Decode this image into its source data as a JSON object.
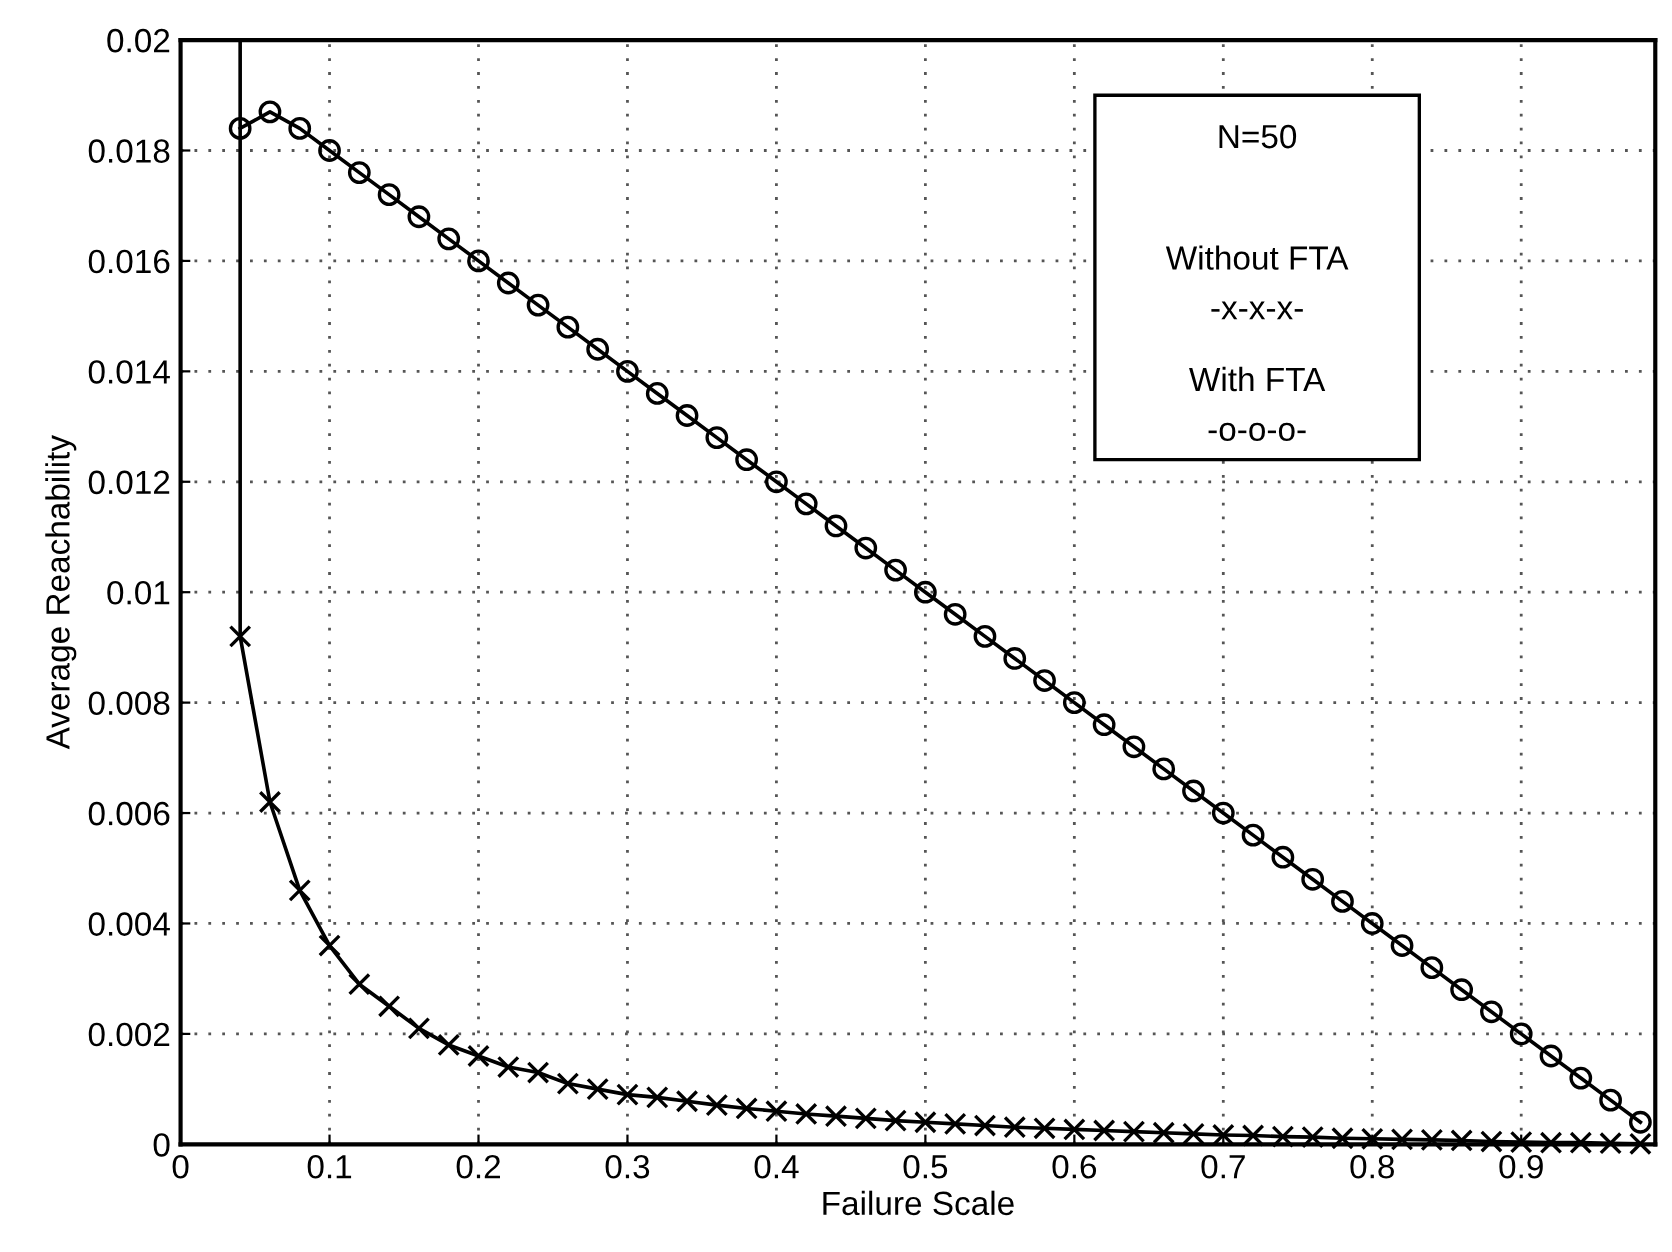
{
  "chart_data": {
    "type": "line",
    "xlabel": "Failure Scale",
    "ylabel": "Average Reachability",
    "x": [
      0.04,
      0.06,
      0.08,
      0.1,
      0.12,
      0.14,
      0.16,
      0.18,
      0.2,
      0.22,
      0.24,
      0.26,
      0.28,
      0.3,
      0.32,
      0.34,
      0.36,
      0.38,
      0.4,
      0.42,
      0.44,
      0.46,
      0.48,
      0.5,
      0.52,
      0.54,
      0.56,
      0.58,
      0.6,
      0.62,
      0.64,
      0.66,
      0.68,
      0.7,
      0.72,
      0.74,
      0.76,
      0.78,
      0.8,
      0.82,
      0.84,
      0.86,
      0.88,
      0.9,
      0.92,
      0.94,
      0.96,
      0.98
    ],
    "series": [
      {
        "color": "#000000",
        "marker": "circle",
        "values": [
          0.0184,
          0.0187,
          0.0184,
          0.018,
          0.0176,
          0.0172,
          0.0168,
          0.0164,
          0.016,
          0.0156,
          0.0152,
          0.0148,
          0.0144,
          0.014,
          0.0136,
          0.0132,
          0.0128,
          0.0124,
          0.012,
          0.0116,
          0.0112,
          0.0108,
          0.0104,
          0.01,
          0.0096,
          0.0092,
          0.0088,
          0.0084,
          0.008,
          0.0076,
          0.0072,
          0.0068,
          0.0064,
          0.006,
          0.0056,
          0.0052,
          0.0048,
          0.0044,
          0.004,
          0.0036,
          0.0032,
          0.0028,
          0.0024,
          0.002,
          0.0016,
          0.0012,
          0.0008,
          0.0004
        ]
      },
      {
        "color": "#000000",
        "marker": "cross",
        "values": [
          0.0092,
          0.0062,
          0.0046,
          0.0036,
          0.0029,
          0.0025,
          0.0021,
          0.0018,
          0.0016,
          0.0014,
          0.0013,
          0.0011,
          0.001,
          0.0009,
          0.00085,
          0.00078,
          0.00071,
          0.00065,
          0.0006,
          0.00055,
          0.00051,
          0.00047,
          0.00043,
          0.0004,
          0.00037,
          0.00034,
          0.00031,
          0.00029,
          0.00027,
          0.00025,
          0.00023,
          0.00021,
          0.00019,
          0.00017,
          0.00016,
          0.00014,
          0.00013,
          0.00011,
          0.0001,
          9e-05,
          8e-05,
          7e-05,
          5e-05,
          4e-05,
          3e-05,
          3e-05,
          2e-05,
          1e-05
        ]
      },
      {
        "color": "#000000",
        "marker": "none",
        "x": [
          0.04,
          0.04
        ],
        "values": [
          0.02,
          0.0092
        ]
      }
    ],
    "xlim": [
      0,
      0.99
    ],
    "xticks": [
      0,
      0.1,
      0.2,
      0.3,
      0.4,
      0.5,
      0.6,
      0.7,
      0.8,
      0.9
    ],
    "ylim": [
      0,
      0.02
    ],
    "yticks": [
      0,
      0.002,
      0.004,
      0.006,
      0.008,
      0.01,
      0.012,
      0.014,
      0.016,
      0.018,
      0.02
    ],
    "grid": true,
    "line_style": "solid",
    "annotations": [
      "N=50",
      "Without FTA",
      "-x-x-x-",
      "With FTA",
      "-o-o-o-"
    ]
  }
}
